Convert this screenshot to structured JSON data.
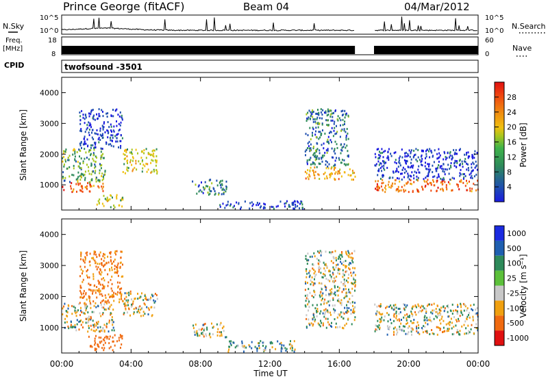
{
  "header": {
    "title": "Prince George (fitACF)",
    "beam": "Beam 04",
    "date": "04/Mar/2012",
    "nsky_label": "N.Sky",
    "nsearch_label": "N.Search",
    "noise_ticks": [
      "10^5",
      "10^0"
    ],
    "freq_label": "Freq.",
    "freq_unit": "[MHz]",
    "freq_ticks": [
      "18",
      "8"
    ],
    "nave_label": "Nave",
    "nave_ticks": [
      "60",
      "0"
    ],
    "cpid_label": "CPID",
    "cpid_text": "twofsound -3501",
    "data_gap_hours": [
      16.9,
      18.0
    ]
  },
  "chart_data": [
    {
      "type": "heatmap",
      "title": "",
      "xlabel": "",
      "ylabel": "Slant Range [km]",
      "xlim": [
        0,
        24
      ],
      "ylim": [
        180,
        4500
      ],
      "x_ticks": [
        "00:00",
        "04:00",
        "08:00",
        "12:00",
        "16:00",
        "20:00",
        "00:00"
      ],
      "y_ticks": [
        1000,
        2000,
        3000,
        4000
      ],
      "colorbar_label": "Power [dB]",
      "colorbar_range": [
        0,
        32
      ],
      "colorbar_ticks": [
        4,
        8,
        12,
        16,
        20,
        24,
        28
      ],
      "scatter_regions": [
        {
          "t_start": 0.0,
          "t_end": 2.5,
          "range_low_km": 800,
          "range_high_km": 1100,
          "power_db": 28
        },
        {
          "t_start": 0.0,
          "t_end": 2.5,
          "range_low_km": 1100,
          "range_high_km": 2200,
          "power_db": 16
        },
        {
          "t_start": 1.0,
          "t_end": 3.5,
          "range_low_km": 2200,
          "range_high_km": 3500,
          "power_db": 8
        },
        {
          "t_start": 2.0,
          "t_end": 3.5,
          "range_low_km": 300,
          "range_high_km": 700,
          "power_db": 20
        },
        {
          "t_start": 3.5,
          "t_end": 5.5,
          "range_low_km": 1400,
          "range_high_km": 2200,
          "power_db": 20
        },
        {
          "t_start": 7.5,
          "t_end": 9.5,
          "range_low_km": 700,
          "range_high_km": 1200,
          "power_db": 12
        },
        {
          "t_start": 9.0,
          "t_end": 14.0,
          "range_low_km": 250,
          "range_high_km": 500,
          "power_db": 8
        },
        {
          "t_start": 14.0,
          "t_end": 16.9,
          "range_low_km": 1200,
          "range_high_km": 1600,
          "power_db": 24
        },
        {
          "t_start": 14.0,
          "t_end": 16.5,
          "range_low_km": 1600,
          "range_high_km": 3500,
          "power_db": 12
        },
        {
          "t_start": 18.0,
          "t_end": 24.0,
          "range_low_km": 800,
          "range_high_km": 1200,
          "power_db": 28
        },
        {
          "t_start": 18.0,
          "t_end": 24.0,
          "range_low_km": 1200,
          "range_high_km": 2200,
          "power_db": 8
        }
      ]
    },
    {
      "type": "heatmap",
      "title": "",
      "xlabel": "Time UT",
      "ylabel": "Slant Range [km]",
      "xlim": [
        0,
        24
      ],
      "ylim": [
        180,
        4500
      ],
      "x_ticks": [
        "00:00",
        "04:00",
        "08:00",
        "12:00",
        "16:00",
        "20:00",
        "00:00"
      ],
      "y_ticks": [
        1000,
        2000,
        3000,
        4000
      ],
      "colorbar_label": "Velocity [m s⁻¹]",
      "colorbar_ticks": [
        "1000",
        "500",
        "100",
        "25",
        "-25",
        "-100",
        "-500",
        "-1000"
      ],
      "colorbar_colors": [
        "#1a2ae0",
        "#1f5fb0",
        "#2e8a5a",
        "#5cc03a",
        "#c8c8c8",
        "#f0a010",
        "#f06a10",
        "#e01010"
      ],
      "scatter_regions": [
        {
          "t_start": 0.0,
          "t_end": 3.0,
          "range_low_km": 900,
          "range_high_km": 1800,
          "velocity_ms": 0
        },
        {
          "t_start": 1.5,
          "t_end": 3.5,
          "range_low_km": 300,
          "range_high_km": 800,
          "velocity_ms": -300
        },
        {
          "t_start": 1.0,
          "t_end": 3.5,
          "range_low_km": 1800,
          "range_high_km": 3500,
          "velocity_ms": -150
        },
        {
          "t_start": 3.5,
          "t_end": 5.5,
          "range_low_km": 1400,
          "range_high_km": 2200,
          "velocity_ms": 0
        },
        {
          "t_start": 7.5,
          "t_end": 9.5,
          "range_low_km": 700,
          "range_high_km": 1200,
          "velocity_ms": 0
        },
        {
          "t_start": 9.5,
          "t_end": 13.5,
          "range_low_km": 250,
          "range_high_km": 600,
          "velocity_ms": 60
        },
        {
          "t_start": 14.0,
          "t_end": 16.9,
          "range_low_km": 1000,
          "range_high_km": 3500,
          "velocity_ms": 0
        },
        {
          "t_start": 18.0,
          "t_end": 24.0,
          "range_low_km": 800,
          "range_high_km": 1800,
          "velocity_ms": 0
        }
      ]
    }
  ]
}
